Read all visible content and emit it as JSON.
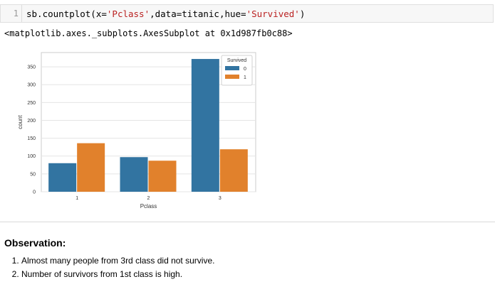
{
  "code_cell": {
    "line_number": "1",
    "code_parts": {
      "p1": "sb.countplot(x=",
      "p2": "'Pclass'",
      "p3": ",data=titanic,hue=",
      "p4": "'Survived'",
      "p5": ")"
    }
  },
  "output": {
    "repr": "<matplotlib.axes._subplots.AxesSubplot at 0x1d987fb0c88>"
  },
  "chart_data": {
    "type": "bar",
    "categories": [
      "1",
      "2",
      "3"
    ],
    "series": [
      {
        "name": "0",
        "values": [
          80,
          97,
          372
        ],
        "color": "#3274a1"
      },
      {
        "name": "1",
        "values": [
          136,
          87,
          119
        ],
        "color": "#e1812c"
      }
    ],
    "xlabel": "Pclass",
    "ylabel": "count",
    "ylim": [
      0,
      390
    ],
    "yticks": [
      "0",
      "50",
      "100",
      "150",
      "200",
      "250",
      "300",
      "350"
    ],
    "legend": {
      "title": "Survived",
      "placement": "top-right"
    },
    "grid": true
  },
  "markdown": {
    "heading": "Observation:",
    "items": [
      "Almost many people from 3rd class did not survive.",
      "Number of survivors from 1st class is high."
    ]
  }
}
